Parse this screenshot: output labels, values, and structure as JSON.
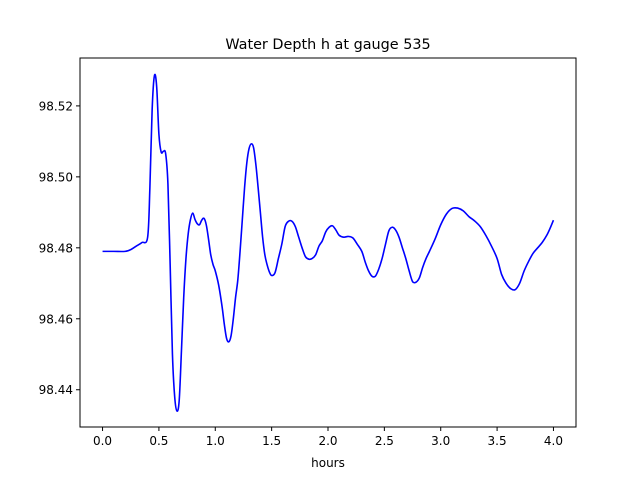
{
  "chart_data": {
    "type": "line",
    "title": "Water Depth h at gauge 535",
    "xlabel": "hours",
    "ylabel": "",
    "xlim": [
      -0.2,
      4.2
    ],
    "ylim": [
      98.4295,
      98.5335
    ],
    "xticks": [
      0.0,
      0.5,
      1.0,
      1.5,
      2.0,
      2.5,
      3.0,
      3.5,
      4.0
    ],
    "xtick_labels": [
      "0.0",
      "0.5",
      "1.0",
      "1.5",
      "2.0",
      "2.5",
      "3.0",
      "3.5",
      "4.0"
    ],
    "yticks": [
      98.44,
      98.46,
      98.48,
      98.5,
      98.52
    ],
    "ytick_labels": [
      "98.44",
      "98.46",
      "98.48",
      "98.50",
      "98.52"
    ],
    "grid": false,
    "series": [
      {
        "color": "#0000ff",
        "x": [
          0.0,
          0.1,
          0.2,
          0.25,
          0.3,
          0.35,
          0.4,
          0.42,
          0.44,
          0.46,
          0.48,
          0.5,
          0.52,
          0.54,
          0.56,
          0.58,
          0.6,
          0.62,
          0.64,
          0.66,
          0.68,
          0.7,
          0.72,
          0.74,
          0.76,
          0.78,
          0.8,
          0.82,
          0.84,
          0.86,
          0.88,
          0.9,
          0.92,
          0.94,
          0.96,
          0.98,
          1.0,
          1.03,
          1.06,
          1.08,
          1.1,
          1.12,
          1.14,
          1.16,
          1.18,
          1.2,
          1.22,
          1.24,
          1.26,
          1.28,
          1.3,
          1.32,
          1.34,
          1.36,
          1.38,
          1.4,
          1.42,
          1.44,
          1.46,
          1.48,
          1.5,
          1.53,
          1.56,
          1.59,
          1.62,
          1.65,
          1.68,
          1.71,
          1.74,
          1.77,
          1.8,
          1.83,
          1.86,
          1.89,
          1.92,
          1.95,
          1.98,
          2.01,
          2.04,
          2.07,
          2.1,
          2.14,
          2.18,
          2.22,
          2.26,
          2.3,
          2.33,
          2.36,
          2.39,
          2.42,
          2.45,
          2.48,
          2.51,
          2.54,
          2.57,
          2.6,
          2.63,
          2.66,
          2.69,
          2.72,
          2.75,
          2.78,
          2.81,
          2.84,
          2.87,
          2.9,
          2.95,
          3.0,
          3.05,
          3.1,
          3.15,
          3.2,
          3.25,
          3.3,
          3.35,
          3.4,
          3.45,
          3.5,
          3.54,
          3.58,
          3.62,
          3.66,
          3.7,
          3.74,
          3.78,
          3.82,
          3.86,
          3.9,
          3.94,
          3.97,
          4.0
        ],
        "y": [
          98.479,
          98.479,
          98.479,
          98.4795,
          98.4805,
          98.4815,
          98.483,
          98.497,
          98.519,
          98.5285,
          98.5255,
          98.512,
          98.507,
          98.5072,
          98.5065,
          98.498,
          98.475,
          98.45,
          98.438,
          98.434,
          98.437,
          98.451,
          98.466,
          98.477,
          98.484,
          98.488,
          98.4898,
          98.488,
          98.4868,
          98.4865,
          98.4878,
          98.4883,
          98.4865,
          98.4825,
          98.478,
          98.4753,
          98.4735,
          98.4695,
          98.4635,
          98.4585,
          98.4545,
          98.4535,
          98.4552,
          98.46,
          98.466,
          98.471,
          98.479,
          98.488,
          98.497,
          98.504,
          98.508,
          98.5093,
          98.5082,
          98.5035,
          98.497,
          98.49,
          98.483,
          98.478,
          98.4752,
          98.4732,
          98.4722,
          98.473,
          98.477,
          98.481,
          98.486,
          98.4875,
          98.4875,
          98.486,
          98.483,
          98.48,
          98.4775,
          98.4768,
          98.477,
          98.478,
          98.4805,
          98.482,
          98.4845,
          98.4858,
          98.4862,
          98.485,
          98.4835,
          98.483,
          98.4832,
          98.4828,
          98.481,
          98.479,
          98.476,
          98.4735,
          98.472,
          98.472,
          98.474,
          98.477,
          98.481,
          98.4848,
          98.4858,
          98.485,
          98.483,
          98.48,
          98.477,
          98.4735,
          98.4705,
          98.4703,
          98.4715,
          98.4745,
          98.477,
          98.479,
          98.4825,
          98.4865,
          98.4895,
          98.4911,
          98.4912,
          98.4904,
          98.4888,
          98.4876,
          98.486,
          98.4835,
          98.4805,
          98.477,
          98.4725,
          98.47,
          98.4685,
          98.4682,
          98.47,
          98.4735,
          98.4762,
          98.4785,
          98.48,
          98.4815,
          98.4835,
          98.4855,
          98.4878
        ]
      }
    ]
  }
}
